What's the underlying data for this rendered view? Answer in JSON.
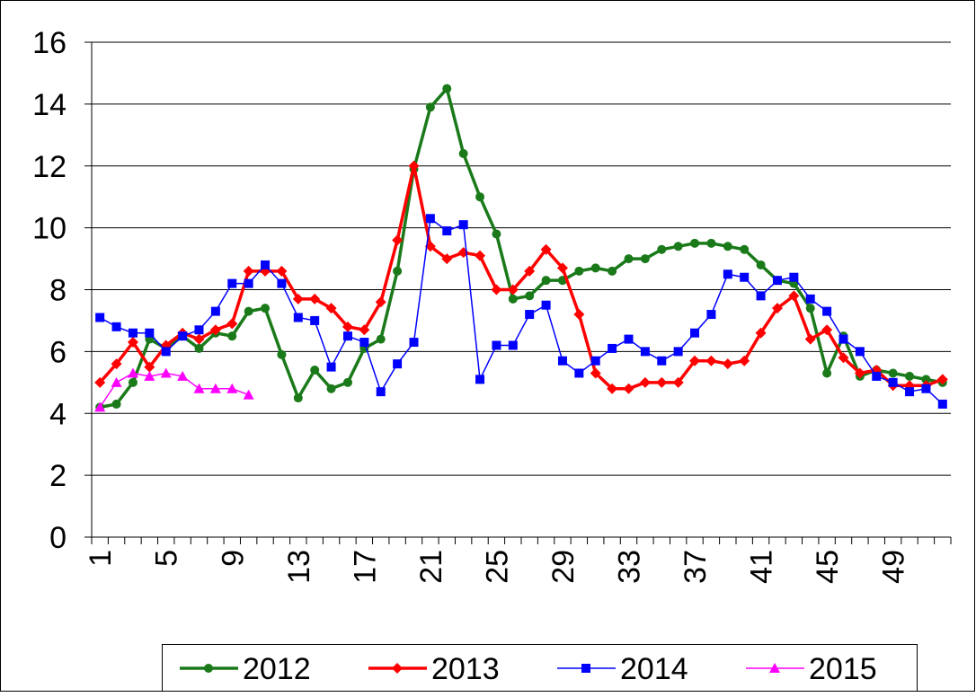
{
  "chart_data": {
    "type": "line",
    "categories": [
      "1",
      null,
      null,
      null,
      "5",
      null,
      null,
      null,
      "9",
      null,
      null,
      null,
      "13",
      null,
      null,
      null,
      "17",
      null,
      null,
      null,
      "21",
      null,
      null,
      null,
      "25",
      null,
      null,
      null,
      "29",
      null,
      null,
      null,
      "33",
      null,
      null,
      null,
      "37",
      null,
      null,
      null,
      "41",
      null,
      null,
      null,
      "45",
      null,
      null,
      null,
      "49",
      null,
      null,
      null
    ],
    "ylim": [
      0,
      16
    ],
    "yticks": [
      0,
      2,
      4,
      6,
      8,
      10,
      12,
      14,
      16
    ],
    "grid": true,
    "legend": "bottom",
    "series": [
      {
        "name": "2012",
        "color": "#1a7a1a",
        "marker": "circle",
        "values": [
          4.2,
          4.3,
          5.0,
          6.4,
          6.1,
          6.5,
          6.1,
          6.6,
          6.5,
          7.3,
          7.4,
          5.9,
          4.5,
          5.4,
          4.8,
          5.0,
          6.1,
          6.4,
          8.6,
          11.9,
          13.9,
          14.5,
          12.4,
          11.0,
          9.8,
          7.7,
          7.8,
          8.3,
          8.3,
          8.6,
          8.7,
          8.6,
          9.0,
          9.0,
          9.3,
          9.4,
          9.5,
          9.5,
          9.4,
          9.3,
          8.8,
          8.3,
          8.2,
          7.4,
          5.3,
          6.5,
          5.2,
          5.4,
          5.3,
          5.2,
          5.1,
          5.0
        ]
      },
      {
        "name": "2013",
        "color": "#ff0000",
        "marker": "diamond",
        "values": [
          5.0,
          5.6,
          6.3,
          5.5,
          6.2,
          6.6,
          6.4,
          6.7,
          6.9,
          8.6,
          8.6,
          8.6,
          7.7,
          7.7,
          7.4,
          6.8,
          6.7,
          7.6,
          9.6,
          12.0,
          9.4,
          9.0,
          9.2,
          9.1,
          8.0,
          8.0,
          8.6,
          9.3,
          8.7,
          7.2,
          5.3,
          4.8,
          4.8,
          5.0,
          5.0,
          5.0,
          5.7,
          5.7,
          5.6,
          5.7,
          6.6,
          7.4,
          7.8,
          6.4,
          6.7,
          5.8,
          5.3,
          5.4,
          4.9,
          4.9,
          4.9,
          5.1
        ]
      },
      {
        "name": "2014",
        "color": "#0000ff",
        "marker": "square",
        "values": [
          7.1,
          6.8,
          6.6,
          6.6,
          6.0,
          6.5,
          6.7,
          7.3,
          8.2,
          8.2,
          8.8,
          8.2,
          7.1,
          7.0,
          5.5,
          6.5,
          6.3,
          4.7,
          5.6,
          6.3,
          10.3,
          9.9,
          10.1,
          5.1,
          6.2,
          6.2,
          7.2,
          7.5,
          5.7,
          5.3,
          5.7,
          6.1,
          6.4,
          6.0,
          5.7,
          6.0,
          6.6,
          7.2,
          8.5,
          8.4,
          7.8,
          8.3,
          8.4,
          7.7,
          7.3,
          6.4,
          6.0,
          5.2,
          5.0,
          4.7,
          4.8,
          4.3
        ]
      },
      {
        "name": "2015",
        "color": "#ff00ff",
        "marker": "triangle",
        "values": [
          4.2,
          5.0,
          5.3,
          5.2,
          5.3,
          5.2,
          4.8,
          4.8,
          4.8,
          4.6,
          null,
          null,
          null,
          null,
          null,
          null,
          null,
          null,
          null,
          null,
          null,
          null,
          null,
          null,
          null,
          null,
          null,
          null,
          null,
          null,
          null,
          null,
          null,
          null,
          null,
          null,
          null,
          null,
          null,
          null,
          null,
          null,
          null,
          null,
          null,
          null,
          null,
          null,
          null,
          null,
          null,
          null
        ]
      }
    ]
  }
}
